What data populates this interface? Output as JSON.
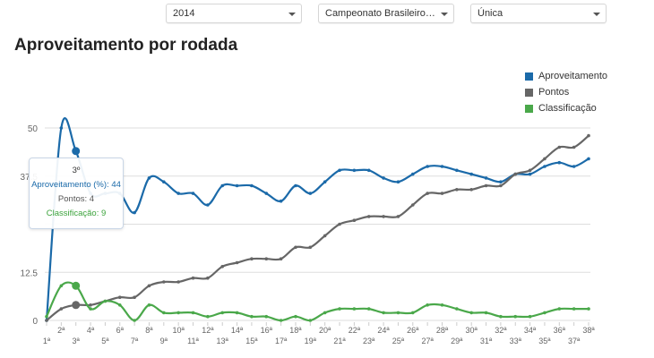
{
  "filters": {
    "year": "2014",
    "championship": "Campeonato Brasileiro Sé...",
    "phase": "Única"
  },
  "chart_data": {
    "type": "line",
    "title": "Aproveitamento por rodada",
    "x": [
      "1ª",
      "2ª",
      "3ª",
      "4ª",
      "5ª",
      "6ª",
      "7ª",
      "8ª",
      "9ª",
      "10ª",
      "11ª",
      "12ª",
      "13ª",
      "14ª",
      "15ª",
      "16ª",
      "17ª",
      "18ª",
      "19ª",
      "20ª",
      "21ª",
      "22ª",
      "23ª",
      "24ª",
      "25ª",
      "26ª",
      "27ª",
      "28ª",
      "29ª",
      "30ª",
      "31ª",
      "32ª",
      "33ª",
      "34ª",
      "35ª",
      "36ª",
      "37ª",
      "38ª"
    ],
    "y_ticks": [
      {
        "value": 0,
        "label": "0"
      },
      {
        "value": 12.5,
        "label": "12.5"
      },
      {
        "value": 37.5,
        "label": "37.5"
      },
      {
        "value": 50,
        "label": "50"
      }
    ],
    "ylim": [
      0,
      50
    ],
    "grid": true,
    "legend_position": "top-right",
    "series": [
      {
        "name": "Aproveitamento",
        "color": "#1b6aa9",
        "values": [
          0,
          50,
          44,
          33,
          33,
          33,
          28,
          37,
          36,
          33,
          33,
          30,
          35,
          35,
          35,
          33,
          31,
          35,
          33,
          36,
          39,
          39,
          39,
          37,
          36,
          38,
          40,
          40,
          39,
          38,
          37,
          36,
          38,
          38,
          40,
          41,
          40,
          42
        ]
      },
      {
        "name": "Pontos",
        "color": "#666666",
        "values": [
          0,
          3,
          4,
          4,
          5,
          6,
          6,
          9,
          10,
          10,
          11,
          11,
          14,
          15,
          16,
          16,
          16,
          19,
          19,
          22,
          25,
          26,
          27,
          27,
          27,
          30,
          33,
          33,
          34,
          34,
          35,
          35,
          38,
          39,
          42,
          45,
          45,
          48
        ]
      },
      {
        "name": "Classificação",
        "color": "#4aa84a",
        "values": [
          1,
          9,
          9,
          3,
          5,
          4,
          0,
          4,
          2,
          2,
          2,
          1,
          2,
          2,
          1,
          1,
          0,
          1,
          0,
          2,
          3,
          3,
          3,
          2,
          2,
          2,
          4,
          4,
          3,
          2,
          2,
          1,
          1,
          1,
          2,
          3,
          3,
          3
        ]
      }
    ],
    "tooltip": {
      "round": "3º",
      "lines": [
        "Aproveitamento (%): 44",
        "Pontos: 4",
        "Classificação: 9"
      ]
    }
  }
}
